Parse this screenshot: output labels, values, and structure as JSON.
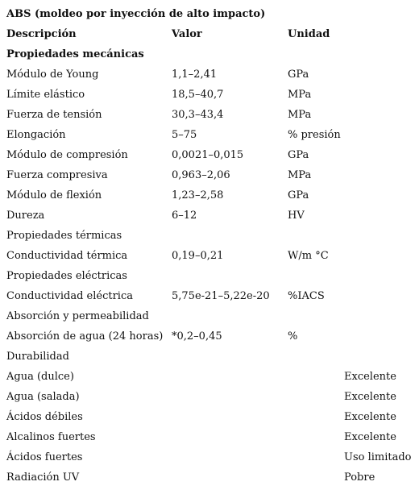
{
  "title": "ABS (moldeo por inyección de alto impacto)",
  "headers": {
    "description": "Descripción",
    "value": "Valor",
    "unit": "Unidad"
  },
  "sections": {
    "mechanical": "Propiedades mecánicas",
    "thermal": "Propiedades térmicas",
    "electrical": "Propiedades eléctricas",
    "absorption": "Absorción y permeabilidad",
    "durability": "Durabilidad"
  },
  "mechanical": [
    {
      "desc": "Módulo de Young",
      "value": "1,1–2,41",
      "unit": "GPa"
    },
    {
      "desc": "Límite elástico",
      "value": "18,5–40,7",
      "unit": "MPa"
    },
    {
      "desc": "Fuerza de tensión",
      "value": "30,3–43,4",
      "unit": "MPa"
    },
    {
      "desc": "Elongación",
      "value": "5–75",
      "unit": "% presión"
    },
    {
      "desc": "Módulo de compresión",
      "value": "0,0021–0,015",
      "unit": "GPa"
    },
    {
      "desc": "Fuerza compresiva",
      "value": "0,963–2,06",
      "unit": "MPa"
    },
    {
      "desc": "Módulo de flexión",
      "value": "1,23–2,58",
      "unit": "GPa"
    },
    {
      "desc": "Dureza",
      "value": "6–12",
      "unit": "HV"
    }
  ],
  "thermal": [
    {
      "desc": "Conductividad térmica",
      "value": "0,19–0,21",
      "unit": "W/m °C"
    }
  ],
  "electrical": [
    {
      "desc": "Conductividad eléctrica",
      "value": "5,75e-21–5,22e-20",
      "unit": "%IACS"
    }
  ],
  "absorption": [
    {
      "desc": "Absorción de agua (24 horas)",
      "value": "*0,2–0,45",
      "unit": "%"
    }
  ],
  "durability": [
    {
      "desc": "Agua (dulce)",
      "rating": "Excelente"
    },
    {
      "desc": "Agua (salada)",
      "rating": "Excelente"
    },
    {
      "desc": "Ácidos débiles",
      "rating": "Excelente"
    },
    {
      "desc": "Alcalinos fuertes",
      "rating": "Excelente"
    },
    {
      "desc": "Ácidos fuertes",
      "rating": "Uso limitado"
    },
    {
      "desc": "Radiación UV",
      "rating": "Pobre"
    }
  ]
}
